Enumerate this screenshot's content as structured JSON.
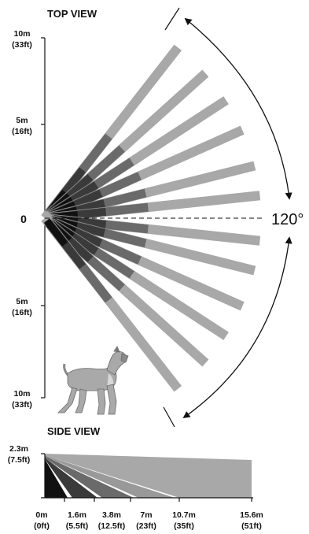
{
  "titles": {
    "top_view": "TOP VIEW",
    "side_view": "SIDE VIEW"
  },
  "top_view": {
    "coverage_angle": "120°",
    "zero_label": "0",
    "upper_ticks": [
      {
        "m": "10m",
        "ft": "(33ft)"
      },
      {
        "m": "5m",
        "ft": "(16ft)"
      }
    ],
    "lower_ticks": [
      {
        "m": "5m",
        "ft": "(16ft)"
      },
      {
        "m": "10m",
        "ft": "(33ft)"
      }
    ],
    "beam_angles_deg": [
      -52,
      -42,
      -33,
      -24,
      -14,
      -6,
      6,
      14,
      24,
      33,
      42,
      52
    ],
    "zone_colors": [
      "#111111",
      "#3a3a3a",
      "#6a6a6a",
      "#9a9a9a",
      "#a8a8a8"
    ]
  },
  "side_view": {
    "height": {
      "m": "2.3m",
      "ft": "(7.5ft)"
    },
    "distances": [
      {
        "m": "0m",
        "ft": "(0ft)"
      },
      {
        "m": "1.6m",
        "ft": "(5.5ft)"
      },
      {
        "m": "3.8m",
        "ft": "(12.5ft)"
      },
      {
        "m": "7m",
        "ft": "(23ft)"
      },
      {
        "m": "10.7m",
        "ft": "(35ft)"
      },
      {
        "m": "15.6m",
        "ft": "(51ft)"
      }
    ]
  },
  "icons": {
    "pet": "dog-icon"
  }
}
